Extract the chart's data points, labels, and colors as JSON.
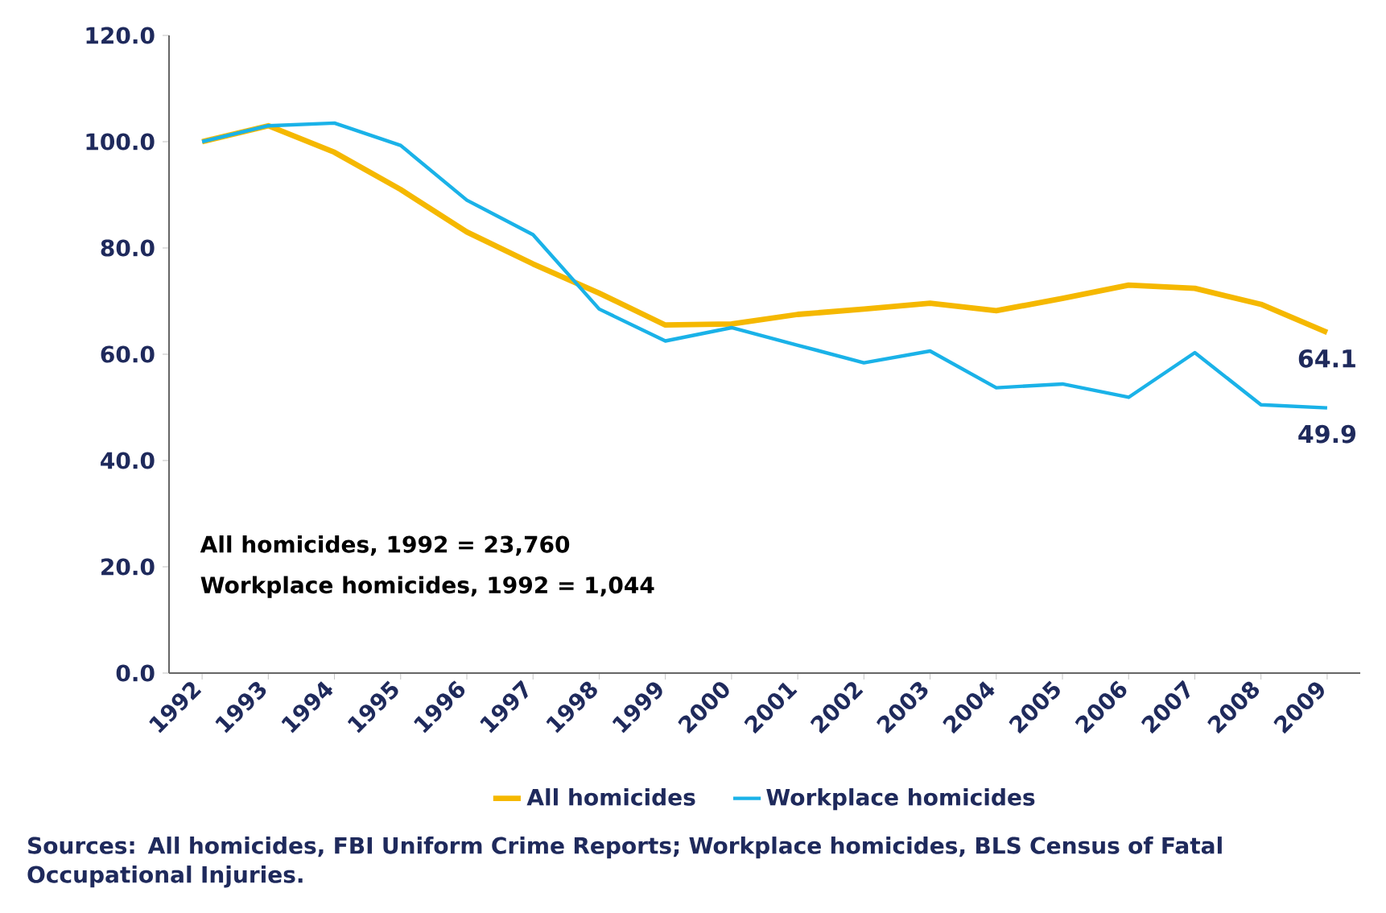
{
  "chart_data": {
    "type": "line",
    "categories": [
      "1992",
      "1993",
      "1994",
      "1995",
      "1996",
      "1997",
      "1998",
      "1999",
      "2000",
      "2001",
      "2002",
      "2003",
      "2004",
      "2005",
      "2006",
      "2007",
      "2008",
      "2009"
    ],
    "series": [
      {
        "name": "All homicides",
        "color": "#f5b800",
        "values": [
          100,
          103,
          98,
          91,
          83,
          77,
          71.5,
          65.5,
          65.7,
          67.5,
          68.5,
          69.6,
          68.2,
          70.5,
          73,
          72.4,
          69.4,
          64.1
        ],
        "value_labels": [
          null,
          null,
          null,
          null,
          null,
          null,
          null,
          null,
          null,
          null,
          null,
          null,
          null,
          null,
          null,
          null,
          null,
          "64.1"
        ]
      },
      {
        "name": "Workplace homicides",
        "color": "#1ab2e8",
        "values": [
          100,
          103,
          103.5,
          99.3,
          89,
          82.5,
          68.5,
          62.5,
          65,
          61.7,
          58.4,
          60.6,
          53.7,
          54.4,
          51.9,
          60.3,
          50.5,
          49.9
        ],
        "value_labels": [
          null,
          null,
          null,
          null,
          null,
          null,
          null,
          null,
          null,
          null,
          null,
          null,
          null,
          null,
          null,
          null,
          null,
          "49.9"
        ]
      }
    ],
    "ylim": [
      0,
      120
    ],
    "yticks": [
      {
        "value": 0,
        "label": "0.0"
      },
      {
        "value": 20,
        "label": "20.0"
      },
      {
        "value": 40,
        "label": "40.0"
      },
      {
        "value": 60,
        "label": "60.0"
      },
      {
        "value": 80,
        "label": "80.0"
      },
      {
        "value": 100,
        "label": "100.0"
      },
      {
        "value": 120,
        "label": "120.0"
      }
    ],
    "legend": "bottom",
    "marker": "none",
    "line_style": "solid",
    "annotations": [
      "All homicides, 1992 = 23,760",
      "Workplace homicides, 1992 = 1,044",
      "Sources: All homicides, FBI Uniform Crime Reports; Workplace homicides, BLS Census of Fatal Occupational Injuries."
    ]
  }
}
